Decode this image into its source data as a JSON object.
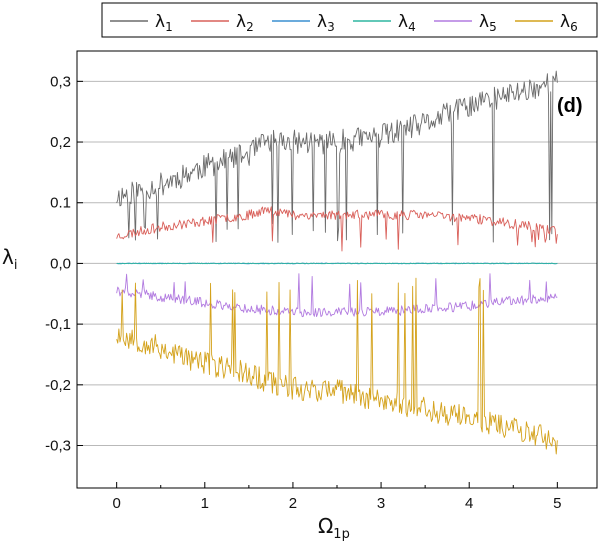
{
  "chart_data": {
    "type": "line",
    "title": "",
    "panel_label": "(d)",
    "xlabel_main": "Ω",
    "xlabel_sub": "1p",
    "ylabel_main": "λ",
    "ylabel_sub": "i",
    "xlim": [
      -0.45,
      5.45
    ],
    "ylim": [
      -0.37,
      0.35
    ],
    "xticks": [
      0,
      1,
      2,
      3,
      4,
      5
    ],
    "xtick_labels": [
      "0",
      "1",
      "2",
      "3",
      "4",
      "5"
    ],
    "yticks": [
      -0.3,
      -0.2,
      -0.1,
      0.0,
      0.1,
      0.2,
      0.3
    ],
    "ytick_labels": [
      "-0,3",
      "-0,2",
      "-0,1",
      "0,0",
      "0.1",
      "0,2",
      "0,3"
    ],
    "grid": "horizontal",
    "legend_position": "top",
    "legend": [
      {
        "symbol": "λ",
        "sub": "1",
        "color": "#6b6b6b"
      },
      {
        "symbol": "λ",
        "sub": "2",
        "color": "#d9605a"
      },
      {
        "symbol": "λ",
        "sub": "3",
        "color": "#3a8fd0"
      },
      {
        "symbol": "λ",
        "sub": "4",
        "color": "#2fb5a0"
      },
      {
        "symbol": "λ",
        "sub": "5",
        "color": "#b27be0"
      },
      {
        "symbol": "λ",
        "sub": "6",
        "color": "#d4a21c"
      }
    ],
    "x_range": [
      0,
      5
    ],
    "samples": 400,
    "series": [
      {
        "name": "λ1",
        "color": "#6b6b6b",
        "trend_x": [
          0,
          0.5,
          1,
          1.5,
          1.7,
          2,
          2.5,
          3,
          3.5,
          4,
          4.5,
          5
        ],
        "trend_y": [
          0.11,
          0.13,
          0.16,
          0.18,
          0.2,
          0.2,
          0.2,
          0.21,
          0.23,
          0.26,
          0.28,
          0.3
        ],
        "noise": 0.02,
        "dip_to": 0.05,
        "dip_rate": 0.05,
        "seed": 11
      },
      {
        "name": "λ2",
        "color": "#d9605a",
        "trend_x": [
          0,
          0.5,
          1,
          1.5,
          1.7,
          2,
          3,
          3.5,
          4,
          4.5,
          5
        ],
        "trend_y": [
          0.045,
          0.06,
          0.07,
          0.08,
          0.09,
          0.08,
          0.08,
          0.08,
          0.075,
          0.065,
          0.055
        ],
        "noise": 0.008,
        "dip_to": 0.03,
        "dip_rate": 0.025,
        "seed": 23
      },
      {
        "name": "λ3",
        "color": "#3a8fd0",
        "trend_x": [
          0,
          5
        ],
        "trend_y": [
          0.0,
          0.0
        ],
        "noise": 0.0006,
        "dip_to": 0.0,
        "dip_rate": 0,
        "seed": 31
      },
      {
        "name": "λ4",
        "color": "#2fb5a0",
        "trend_x": [
          0,
          5
        ],
        "trend_y": [
          0.0,
          0.0
        ],
        "noise": 0.0006,
        "dip_to": 0.0,
        "dip_rate": 0,
        "seed": 37
      },
      {
        "name": "λ5",
        "color": "#b27be0",
        "trend_x": [
          0,
          0.5,
          1,
          1.5,
          2,
          3,
          3.5,
          4,
          4.5,
          5
        ],
        "trend_y": [
          -0.045,
          -0.055,
          -0.065,
          -0.075,
          -0.08,
          -0.08,
          -0.075,
          -0.07,
          -0.062,
          -0.055
        ],
        "noise": 0.008,
        "dip_to": -0.025,
        "dip_rate": 0.03,
        "seed": 41
      },
      {
        "name": "λ6",
        "color": "#d4a21c",
        "trend_x": [
          0,
          0.5,
          1,
          1.5,
          1.7,
          2,
          2.5,
          3,
          3.5,
          4,
          4.5,
          5
        ],
        "trend_y": [
          -0.115,
          -0.14,
          -0.165,
          -0.18,
          -0.195,
          -0.205,
          -0.21,
          -0.225,
          -0.24,
          -0.255,
          -0.27,
          -0.295
        ],
        "noise": 0.02,
        "dip_to": -0.04,
        "dip_rate": 0.05,
        "seed": 53
      }
    ]
  }
}
